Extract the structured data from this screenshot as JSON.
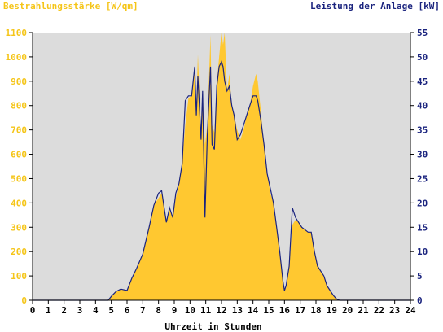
{
  "chart_data": {
    "type": "area",
    "title_left": "Bestrahlungsstärke [W/qm]",
    "title_right": "Leistung der Anlage [kW]",
    "xlabel": "Uhrzeit in Stunden",
    "xlim": [
      0,
      24
    ],
    "x_ticks": [
      "0",
      "1",
      "2",
      "3",
      "4",
      "5",
      "6",
      "7",
      "8",
      "9",
      "10",
      "11",
      "12",
      "13",
      "14",
      "15",
      "16",
      "17",
      "18",
      "19",
      "20",
      "21",
      "22",
      "23",
      "24"
    ],
    "y_left_lim": [
      0,
      1100
    ],
    "y_left_ticks": [
      "0",
      "100",
      "200",
      "300",
      "400",
      "500",
      "600",
      "700",
      "800",
      "900",
      "1000",
      "1100"
    ],
    "y_right_lim": [
      0,
      55
    ],
    "y_right_ticks": [
      "0",
      "5",
      "10",
      "15",
      "20",
      "25",
      "30",
      "35",
      "40",
      "45",
      "50",
      "55"
    ],
    "grid": false,
    "colors": {
      "irradiance": "#ffc830",
      "power": "#1a237e",
      "plot_bg": "#dcdcdc",
      "axis": "#000000"
    },
    "series": [
      {
        "name": "Bestrahlungsstärke [W/qm]",
        "axis": "left",
        "x": [
          0,
          4.8,
          5.0,
          5.3,
          5.6,
          6.0,
          6.3,
          6.6,
          7.0,
          7.4,
          7.7,
          8.0,
          8.2,
          8.5,
          8.7,
          8.9,
          9.1,
          9.3,
          9.5,
          9.7,
          9.9,
          10.1,
          10.3,
          10.4,
          10.5,
          10.7,
          10.8,
          10.95,
          11.1,
          11.3,
          11.4,
          11.55,
          11.7,
          11.85,
          12.0,
          12.1,
          12.2,
          12.35,
          12.5,
          12.65,
          12.8,
          13.0,
          13.2,
          13.4,
          13.6,
          13.8,
          14.0,
          14.2,
          14.3,
          14.5,
          14.7,
          14.9,
          15.1,
          15.3,
          15.5,
          15.7,
          15.9,
          16.0,
          16.1,
          16.3,
          16.5,
          16.7,
          16.9,
          17.1,
          17.3,
          17.5,
          17.7,
          17.9,
          18.1,
          18.3,
          18.5,
          18.7,
          18.9,
          19.1,
          19.3,
          19.5,
          19.7,
          19.9,
          20.1,
          24
        ],
        "values": [
          0,
          0,
          15,
          35,
          45,
          40,
          90,
          130,
          190,
          300,
          390,
          420,
          440,
          320,
          380,
          340,
          420,
          480,
          560,
          720,
          830,
          840,
          960,
          800,
          1010,
          700,
          850,
          640,
          720,
          1090,
          720,
          690,
          890,
          1000,
          1100,
          1050,
          1100,
          860,
          930,
          800,
          760,
          700,
          660,
          700,
          760,
          800,
          880,
          930,
          900,
          780,
          640,
          520,
          440,
          400,
          300,
          200,
          80,
          40,
          50,
          130,
          310,
          330,
          320,
          300,
          290,
          280,
          280,
          210,
          150,
          120,
          100,
          60,
          40,
          20,
          5,
          0,
          0,
          0,
          0,
          0
        ]
      },
      {
        "name": "Leistung der Anlage [kW]",
        "axis": "right",
        "x": [
          0,
          4.8,
          5.0,
          5.3,
          5.6,
          6.0,
          6.3,
          6.6,
          7.0,
          7.4,
          7.7,
          8.0,
          8.2,
          8.5,
          8.7,
          8.9,
          9.1,
          9.3,
          9.5,
          9.7,
          9.9,
          10.1,
          10.3,
          10.4,
          10.5,
          10.7,
          10.8,
          10.95,
          11.1,
          11.3,
          11.4,
          11.55,
          11.7,
          11.85,
          12.0,
          12.1,
          12.2,
          12.35,
          12.5,
          12.65,
          12.8,
          13.0,
          13.2,
          13.4,
          13.6,
          13.8,
          14.0,
          14.2,
          14.3,
          14.5,
          14.7,
          14.9,
          15.1,
          15.3,
          15.5,
          15.7,
          15.9,
          16.0,
          16.1,
          16.3,
          16.5,
          16.7,
          16.9,
          17.1,
          17.3,
          17.5,
          17.7,
          17.9,
          18.1,
          18.3,
          18.5,
          18.7,
          18.9,
          19.1,
          19.3,
          19.5,
          19.7,
          19.9,
          20.1,
          24
        ],
        "values": [
          0,
          0,
          0.8,
          1.8,
          2.3,
          2.0,
          4.5,
          6.5,
          9.5,
          15,
          19.5,
          22,
          22.5,
          16,
          19,
          17,
          22,
          24,
          28,
          41,
          42,
          42,
          48,
          38,
          46,
          33,
          43,
          17,
          34,
          48,
          32,
          31,
          44,
          48,
          49,
          48,
          45,
          43,
          44,
          40,
          38,
          33,
          34,
          36,
          38,
          40,
          42,
          42,
          41,
          37,
          32,
          26,
          23,
          20,
          15,
          10,
          4,
          2,
          3,
          7,
          19,
          17,
          16,
          15,
          14.5,
          14,
          14,
          10,
          7,
          6,
          5,
          3,
          2,
          1,
          0.3,
          0,
          0,
          0,
          0,
          0
        ]
      }
    ]
  }
}
